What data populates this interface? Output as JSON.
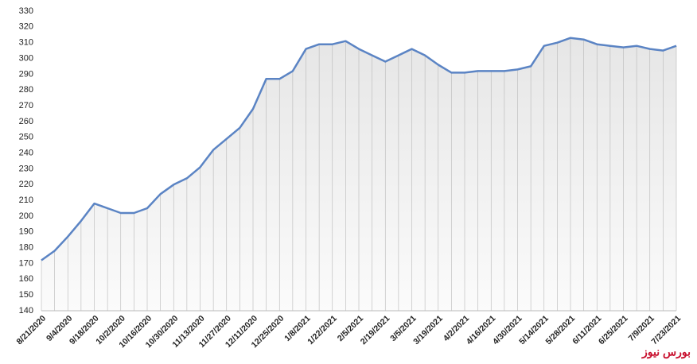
{
  "chart_data": {
    "type": "line",
    "watermark": "بورس نیوز",
    "categories": [
      "8/21/2020",
      null,
      "9/4/2020",
      null,
      "9/18/2020",
      null,
      "10/2/2020",
      null,
      "10/16/2020",
      null,
      "10/30/2020",
      null,
      "11/13/2020",
      null,
      "11/27/2020",
      null,
      "12/11/2020",
      null,
      "12/25/2020",
      null,
      "1/8/2021",
      null,
      "1/22/2021",
      null,
      "2/5/2021",
      null,
      "2/19/2021",
      null,
      "3/5/2021",
      null,
      "3/19/2021",
      null,
      "4/2/2021",
      null,
      "4/16/2021",
      null,
      "4/30/2021",
      null,
      "5/14/2021",
      null,
      "5/28/2021",
      null,
      "6/11/2021",
      null,
      "6/25/2021",
      null,
      "7/9/2021",
      null,
      "7/23/2021"
    ],
    "values": [
      172,
      178,
      187,
      197,
      208,
      205,
      202,
      202,
      205,
      214,
      220,
      224,
      231,
      242,
      249,
      256,
      268,
      287,
      287,
      292,
      306,
      309,
      309,
      311,
      306,
      302,
      298,
      302,
      306,
      302,
      296,
      291,
      291,
      292,
      292,
      292,
      293,
      295,
      308,
      310,
      313,
      312,
      309,
      308,
      307,
      308,
      306,
      305,
      308
    ],
    "color": "#5b84c4",
    "ylim": [
      140,
      330
    ],
    "yticks": [
      140,
      150,
      160,
      170,
      180,
      190,
      200,
      210,
      220,
      230,
      240,
      250,
      260,
      270,
      280,
      290,
      300,
      310,
      320,
      330
    ],
    "vertical_grid": true,
    "area_fill": true
  }
}
